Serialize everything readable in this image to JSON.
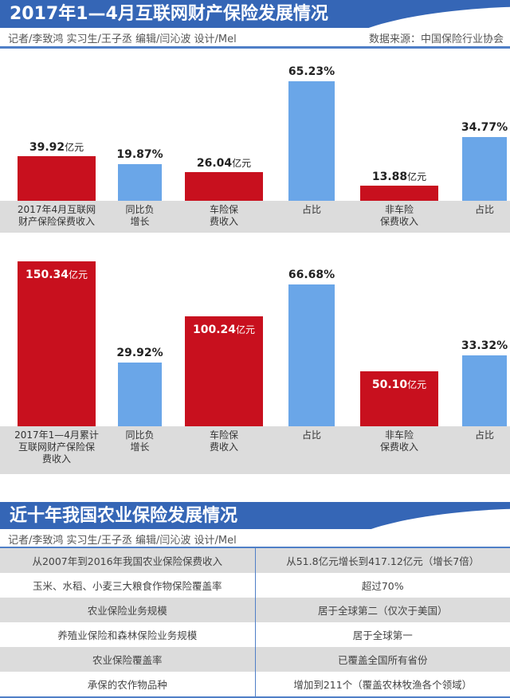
{
  "header1": {
    "title": "2017年1—4月互联网财产保险发展情况",
    "credits": "记者/李致鸿  实习生/王子丞  编辑/闫沁波  设计/Mel",
    "source": "数据来源：中国保险行业协会"
  },
  "header2": {
    "title": "近十年我国农业保险发展情况",
    "credits": "记者/李致鸿  实习生/王子丞  编辑/闫沁波  设计/Mel"
  },
  "colors": {
    "red": "#c8101e",
    "blue": "#6aa6e8",
    "header": "#3566b6"
  },
  "chart_data": [
    {
      "type": "bar",
      "title": "2017年4月",
      "categories": [
        "2017年4月互联网\n财产保险保费收入",
        "同比负\n增长",
        "车险保\n费收入",
        "占比",
        "非车险\n保费收入",
        "占比"
      ],
      "values": [
        39.92,
        19.87,
        26.04,
        65.23,
        13.88,
        34.77
      ],
      "labels": [
        "39.92",
        "19.87%",
        "26.04",
        "65.23%",
        "13.88",
        "34.77%"
      ],
      "unit": "亿元",
      "kinds": [
        "red",
        "blue",
        "red",
        "blue",
        "red",
        "blue"
      ]
    },
    {
      "type": "bar",
      "title": "2017年1—4月累计",
      "categories": [
        "2017年1—4月累计\n互联网财产保险保\n费收入",
        "同比负\n增长",
        "车险保\n费收入",
        "占比",
        "非车险\n保费收入",
        "占比"
      ],
      "values": [
        150.34,
        29.92,
        100.24,
        66.68,
        50.1,
        33.32
      ],
      "labels": [
        "150.34",
        "29.92%",
        "100.24",
        "66.68%",
        "50.10",
        "33.32%"
      ],
      "unit": "亿元",
      "kinds": [
        "red",
        "blue",
        "red",
        "blue",
        "red",
        "blue"
      ]
    }
  ],
  "table": [
    [
      "从2007年到2016年我国农业保险保费收入",
      "从51.8亿元增长到417.12亿元（增长7倍）"
    ],
    [
      "玉米、水稻、小麦三大粮食作物保险覆盖率",
      "超过70%"
    ],
    [
      "农业保险业务规模",
      "居于全球第二（仅次于美国）"
    ],
    [
      "养殖业保险和森林保险业务规模",
      "居于全球第一"
    ],
    [
      "农业保险覆盖率",
      "已覆盖全国所有省份"
    ],
    [
      "承保的农作物品种",
      "增加到211个（覆盖农林牧渔各个领域）"
    ]
  ]
}
